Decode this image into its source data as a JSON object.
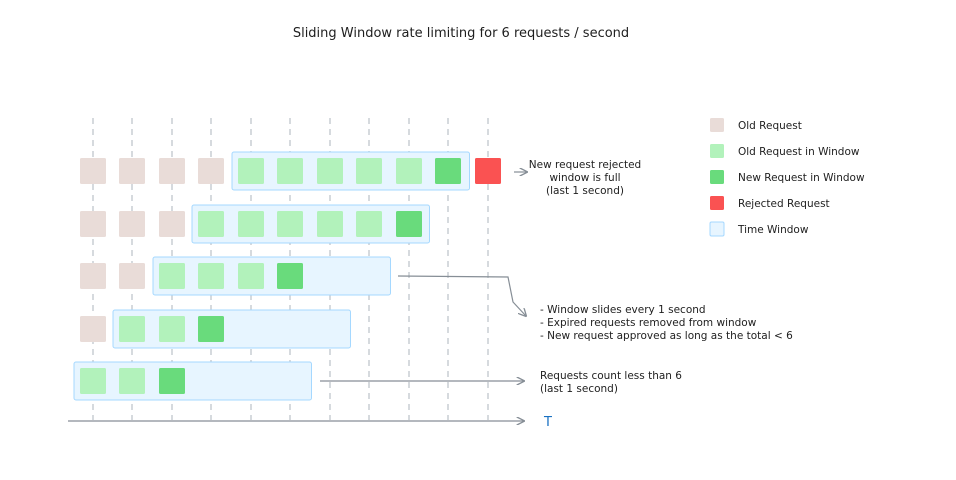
{
  "title": "Sliding Window rate limiting for 6 requests / second",
  "colors": {
    "old_request": "#e9dcd8",
    "old_request_in_window": "#b2f2bb",
    "new_request_in_window": "#69db7c",
    "rejected_request": "#fa5252",
    "time_window_fill": "#e7f5ff",
    "time_window_stroke": "#a5d8ff",
    "axis_label": "#1971c2"
  },
  "legend": [
    {
      "key": "old_request",
      "label": "Old Request"
    },
    {
      "key": "old_request_in_window",
      "label": "Old Request in Window"
    },
    {
      "key": "new_request_in_window",
      "label": "New Request in Window"
    },
    {
      "key": "rejected_request",
      "label": "Rejected Request"
    },
    {
      "key": "time_window",
      "label": "Time Window"
    }
  ],
  "rows": [
    {
      "cells": [
        "old",
        "old",
        "old",
        "old",
        "window",
        "window",
        "window",
        "window",
        "window",
        "new",
        "rejected"
      ]
    },
    {
      "cells": [
        "old",
        "old",
        "old",
        "window",
        "window",
        "window",
        "window",
        "window",
        "new"
      ]
    },
    {
      "cells": [
        "old",
        "old",
        "window",
        "window",
        "window",
        "new"
      ]
    },
    {
      "cells": [
        "old",
        "window",
        "window",
        "new"
      ]
    },
    {
      "cells": [
        "window",
        "window",
        "new"
      ]
    }
  ],
  "annotations": {
    "rejected": [
      "New request rejected",
      "window is full",
      "(last 1 second)"
    ],
    "sliding": [
      "- Window slides every 1 second",
      "- Expired requests removed from window",
      "- New request approved as long as the total < 6"
    ],
    "count": [
      "Requests count less than 6",
      "(last 1 second)"
    ]
  },
  "axis_label": "T"
}
